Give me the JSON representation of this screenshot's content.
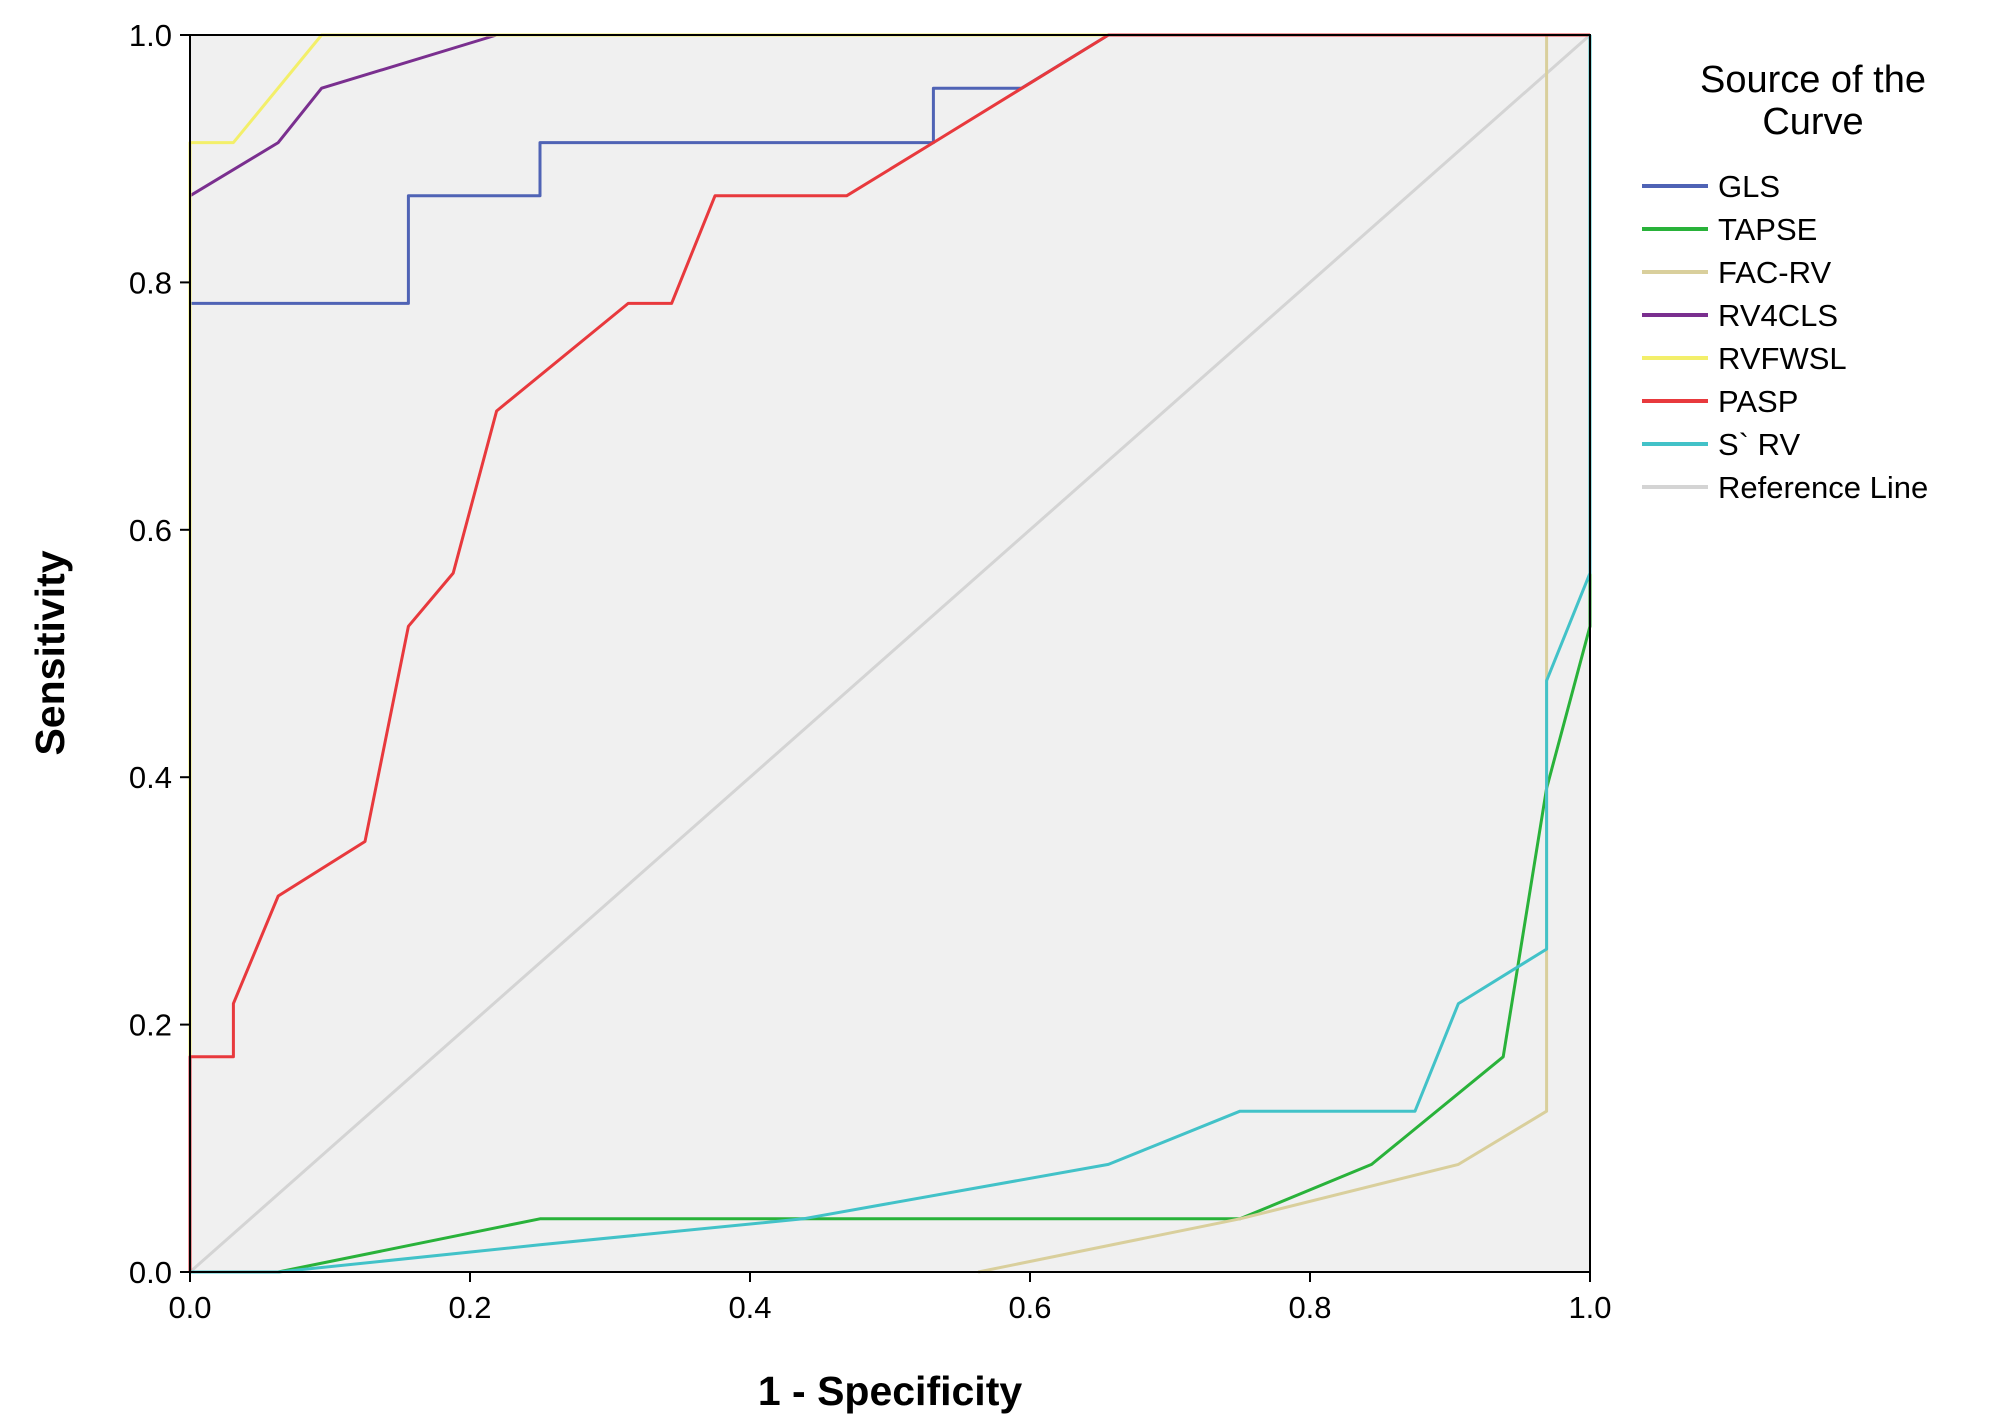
{
  "chart_data": {
    "type": "line",
    "title": "",
    "xlabel": "1 - Specificity",
    "ylabel": "Sensitivity",
    "xlim": [
      0,
      1
    ],
    "ylim": [
      0,
      1
    ],
    "xticks": [
      "0.0",
      "0.2",
      "0.4",
      "0.6",
      "0.8",
      "1.0"
    ],
    "yticks": [
      "0.0",
      "0.2",
      "0.4",
      "0.6",
      "0.8",
      "1.0"
    ],
    "grid": false,
    "legend_placement": "right",
    "legend_title": [
      "Source of the",
      "Curve"
    ],
    "series": [
      {
        "name": "GLS",
        "color": "#4f63b5",
        "points": [
          [
            0,
            0
          ],
          [
            0,
            0.783
          ],
          [
            0.156,
            0.783
          ],
          [
            0.156,
            0.87
          ],
          [
            0.25,
            0.87
          ],
          [
            0.25,
            0.913
          ],
          [
            0.531,
            0.913
          ],
          [
            0.531,
            0.957
          ],
          [
            0.594,
            0.957
          ],
          [
            0.656,
            1.0
          ],
          [
            1.0,
            1.0
          ]
        ]
      },
      {
        "name": "TAPSE",
        "color": "#29b23a",
        "points": [
          [
            0,
            0
          ],
          [
            0.063,
            0
          ],
          [
            0.25,
            0.043
          ],
          [
            0.75,
            0.043
          ],
          [
            0.844,
            0.087
          ],
          [
            0.938,
            0.174
          ],
          [
            0.969,
            0.391
          ],
          [
            1.0,
            0.522
          ],
          [
            1.0,
            1.0
          ]
        ]
      },
      {
        "name": "FAC-RV",
        "color": "#d9cf9c",
        "points": [
          [
            0.563,
            0
          ],
          [
            0.75,
            0.043
          ],
          [
            0.906,
            0.087
          ],
          [
            0.969,
            0.13
          ],
          [
            0.969,
            1.0
          ],
          [
            1.0,
            1.0
          ]
        ]
      },
      {
        "name": "RV4CLS",
        "color": "#7a2f8f",
        "points": [
          [
            0,
            0
          ],
          [
            0,
            0.87
          ],
          [
            0.063,
            0.913
          ],
          [
            0.094,
            0.957
          ],
          [
            0.219,
            1.0
          ],
          [
            1.0,
            1.0
          ]
        ]
      },
      {
        "name": "RVFWSL",
        "color": "#f3ef6a",
        "points": [
          [
            0,
            0
          ],
          [
            0,
            0.913
          ],
          [
            0.031,
            0.913
          ],
          [
            0.094,
            1.0
          ],
          [
            1.0,
            1.0
          ]
        ]
      },
      {
        "name": "PASP",
        "color": "#e8393d",
        "points": [
          [
            0,
            0
          ],
          [
            0,
            0.174
          ],
          [
            0.031,
            0.174
          ],
          [
            0.031,
            0.217
          ],
          [
            0.063,
            0.304
          ],
          [
            0.125,
            0.348
          ],
          [
            0.156,
            0.522
          ],
          [
            0.188,
            0.565
          ],
          [
            0.219,
            0.696
          ],
          [
            0.313,
            0.783
          ],
          [
            0.344,
            0.783
          ],
          [
            0.375,
            0.87
          ],
          [
            0.469,
            0.87
          ],
          [
            0.531,
            0.913
          ],
          [
            0.656,
            1.0
          ],
          [
            1.0,
            1.0
          ]
        ]
      },
      {
        "name": "S` RV",
        "color": "#42c2c8",
        "points": [
          [
            0,
            0
          ],
          [
            0.063,
            0
          ],
          [
            0.25,
            0.022
          ],
          [
            0.438,
            0.043
          ],
          [
            0.656,
            0.087
          ],
          [
            0.75,
            0.13
          ],
          [
            0.875,
            0.13
          ],
          [
            0.906,
            0.217
          ],
          [
            0.969,
            0.261
          ],
          [
            0.969,
            0.478
          ],
          [
            1.0,
            0.565
          ],
          [
            1.0,
            1.0
          ]
        ]
      },
      {
        "name": "Reference Line",
        "color": "#d4d4d4",
        "points": [
          [
            0,
            0
          ],
          [
            1,
            1
          ]
        ]
      }
    ]
  }
}
